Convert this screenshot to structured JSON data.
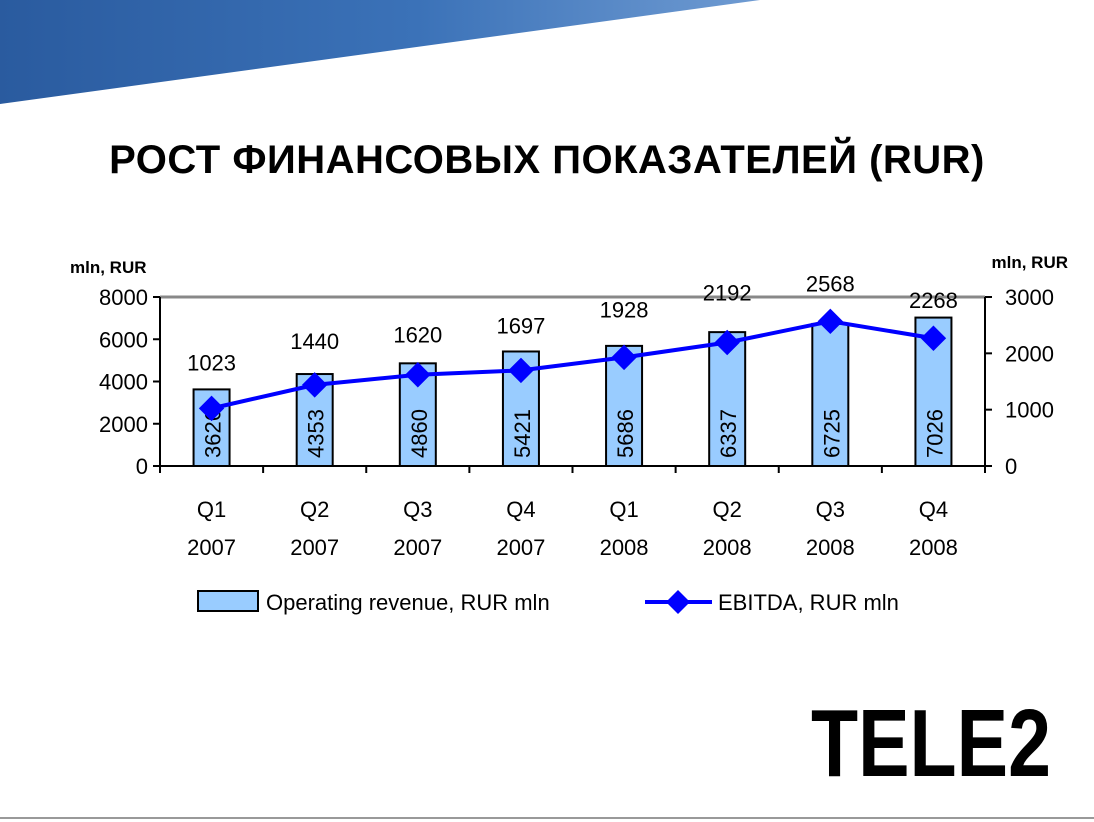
{
  "slide": {
    "title": "РОСТ ФИНАНСОВЫХ ПОКАЗАТЕЛЕЙ (RUR)",
    "logo_text": "TELE2",
    "banner_color": "#2f62a6"
  },
  "chart_data": {
    "type": "bar",
    "title": "",
    "categories": [
      "Q1 2007",
      "Q2 2007",
      "Q3 2007",
      "Q4 2007",
      "Q1 2008",
      "Q2 2008",
      "Q3 2008",
      "Q4 2008"
    ],
    "category_lines": [
      [
        "Q1",
        "2007"
      ],
      [
        "Q2",
        "2007"
      ],
      [
        "Q3",
        "2007"
      ],
      [
        "Q4",
        "2007"
      ],
      [
        "Q1",
        "2008"
      ],
      [
        "Q2",
        "2008"
      ],
      [
        "Q3",
        "2008"
      ],
      [
        "Q4",
        "2008"
      ]
    ],
    "left_axis": {
      "label": "mln, RUR",
      "ylim": [
        0,
        8000
      ],
      "ticks": [
        0,
        2000,
        4000,
        6000,
        8000
      ]
    },
    "right_axis": {
      "label": "mln, RUR",
      "ylim": [
        0,
        3000
      ],
      "ticks": [
        0,
        1000,
        2000,
        3000
      ]
    },
    "series": [
      {
        "name": "Operating revenue, RUR mln",
        "kind": "bar",
        "axis": "left",
        "color": "#99ccff",
        "values": [
          3626,
          4353,
          4860,
          5421,
          5686,
          6337,
          6725,
          7026
        ],
        "labels": [
          "3626",
          "4353",
          "4860",
          "5421",
          "5686",
          "6337",
          "6725",
          "7026"
        ]
      },
      {
        "name": "EBITDA, RUR mln",
        "kind": "line",
        "axis": "right",
        "color": "#0000ff",
        "marker": "diamond",
        "values": [
          1023,
          1440,
          1620,
          1697,
          1928,
          2192,
          2568,
          2268
        ],
        "labels": [
          "1023",
          "1440",
          "1620",
          "1697",
          "1928",
          "2192",
          "2568",
          "2268"
        ]
      }
    ],
    "legend_position": "bottom",
    "grid": false
  }
}
